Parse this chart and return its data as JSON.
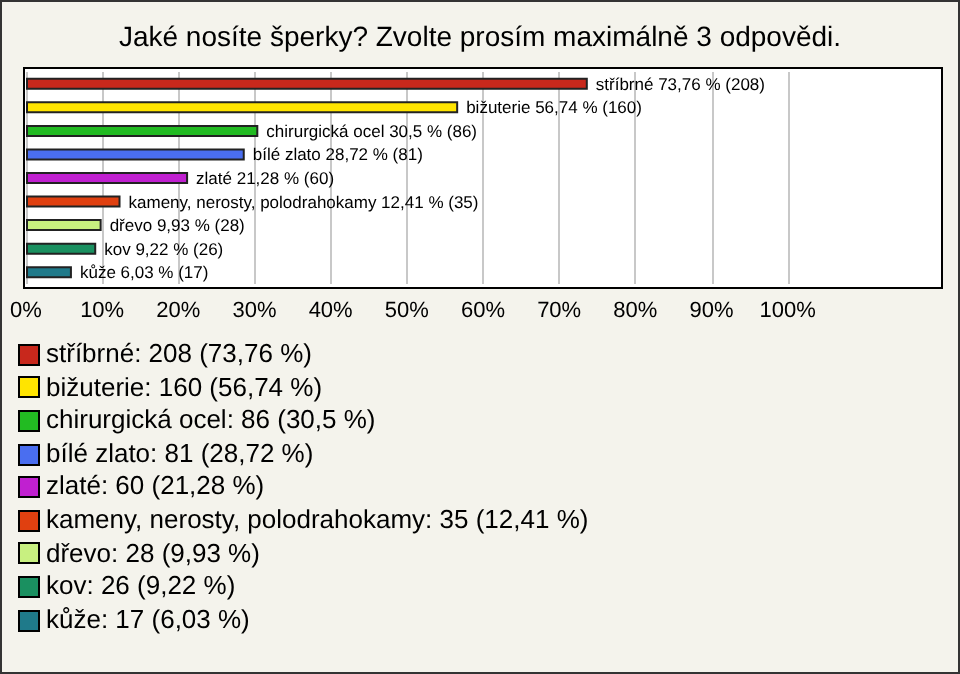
{
  "chart_data": {
    "type": "bar",
    "orientation": "horizontal",
    "title": "Jaké nosíte šperky? Zvolte prosím maximálně 3 odpovědi.",
    "categories": [
      "stříbrné",
      "bižuterie",
      "chirurgická ocel",
      "bílé zlato",
      "zlaté",
      "kameny, nerosty, polodrahokamy",
      "dřevo",
      "kov",
      "kůže"
    ],
    "values": [
      73.76,
      56.74,
      30.5,
      28.72,
      21.28,
      12.41,
      9.93,
      9.22,
      6.03
    ],
    "colors": [
      "#c8281c",
      "#ffe400",
      "#22bb22",
      "#4a6ef0",
      "#c020d0",
      "#e04010",
      "#c8f080",
      "#1a9060",
      "#1f7a8a"
    ],
    "value_labels": [
      "73,76 % (208)",
      "56,74 % (160)",
      "30,5 % (86)",
      "28,72 % (81)",
      "21,28 % (60)",
      "12,41 % (35)",
      "9,93 % (28)",
      "9,22 % (26)",
      "6,03 % (17)"
    ],
    "xlim": [
      0,
      120
    ],
    "xticks": [
      {
        "value": 0,
        "label": "0%"
      },
      {
        "value": 10,
        "label": "10%"
      },
      {
        "value": 20,
        "label": "20%"
      },
      {
        "value": 30,
        "label": "30%"
      },
      {
        "value": 40,
        "label": "40%"
      },
      {
        "value": 50,
        "label": "50%"
      },
      {
        "value": 60,
        "label": "60%"
      },
      {
        "value": 70,
        "label": "70%"
      },
      {
        "value": 80,
        "label": "80%"
      },
      {
        "value": 90,
        "label": "90%"
      },
      {
        "value": 100,
        "label": "100%"
      }
    ],
    "grid": "x",
    "tick_labels": "x",
    "annotations": [
      "stříbrné: 208 (73,76 %)",
      "bižuterie: 160 (56,74 %)",
      "chirurgická ocel: 86 (30,5 %)",
      "bílé zlato: 81 (28,72 %)",
      "zlaté: 60 (21,28 %)",
      "kameny, nerosty, polodrahokamy: 35 (12,41 %)",
      "dřevo: 28 (9,93 %)",
      "kov: 26 (9,22 %)",
      "kůže: 17 (6,03 %)"
    ]
  }
}
